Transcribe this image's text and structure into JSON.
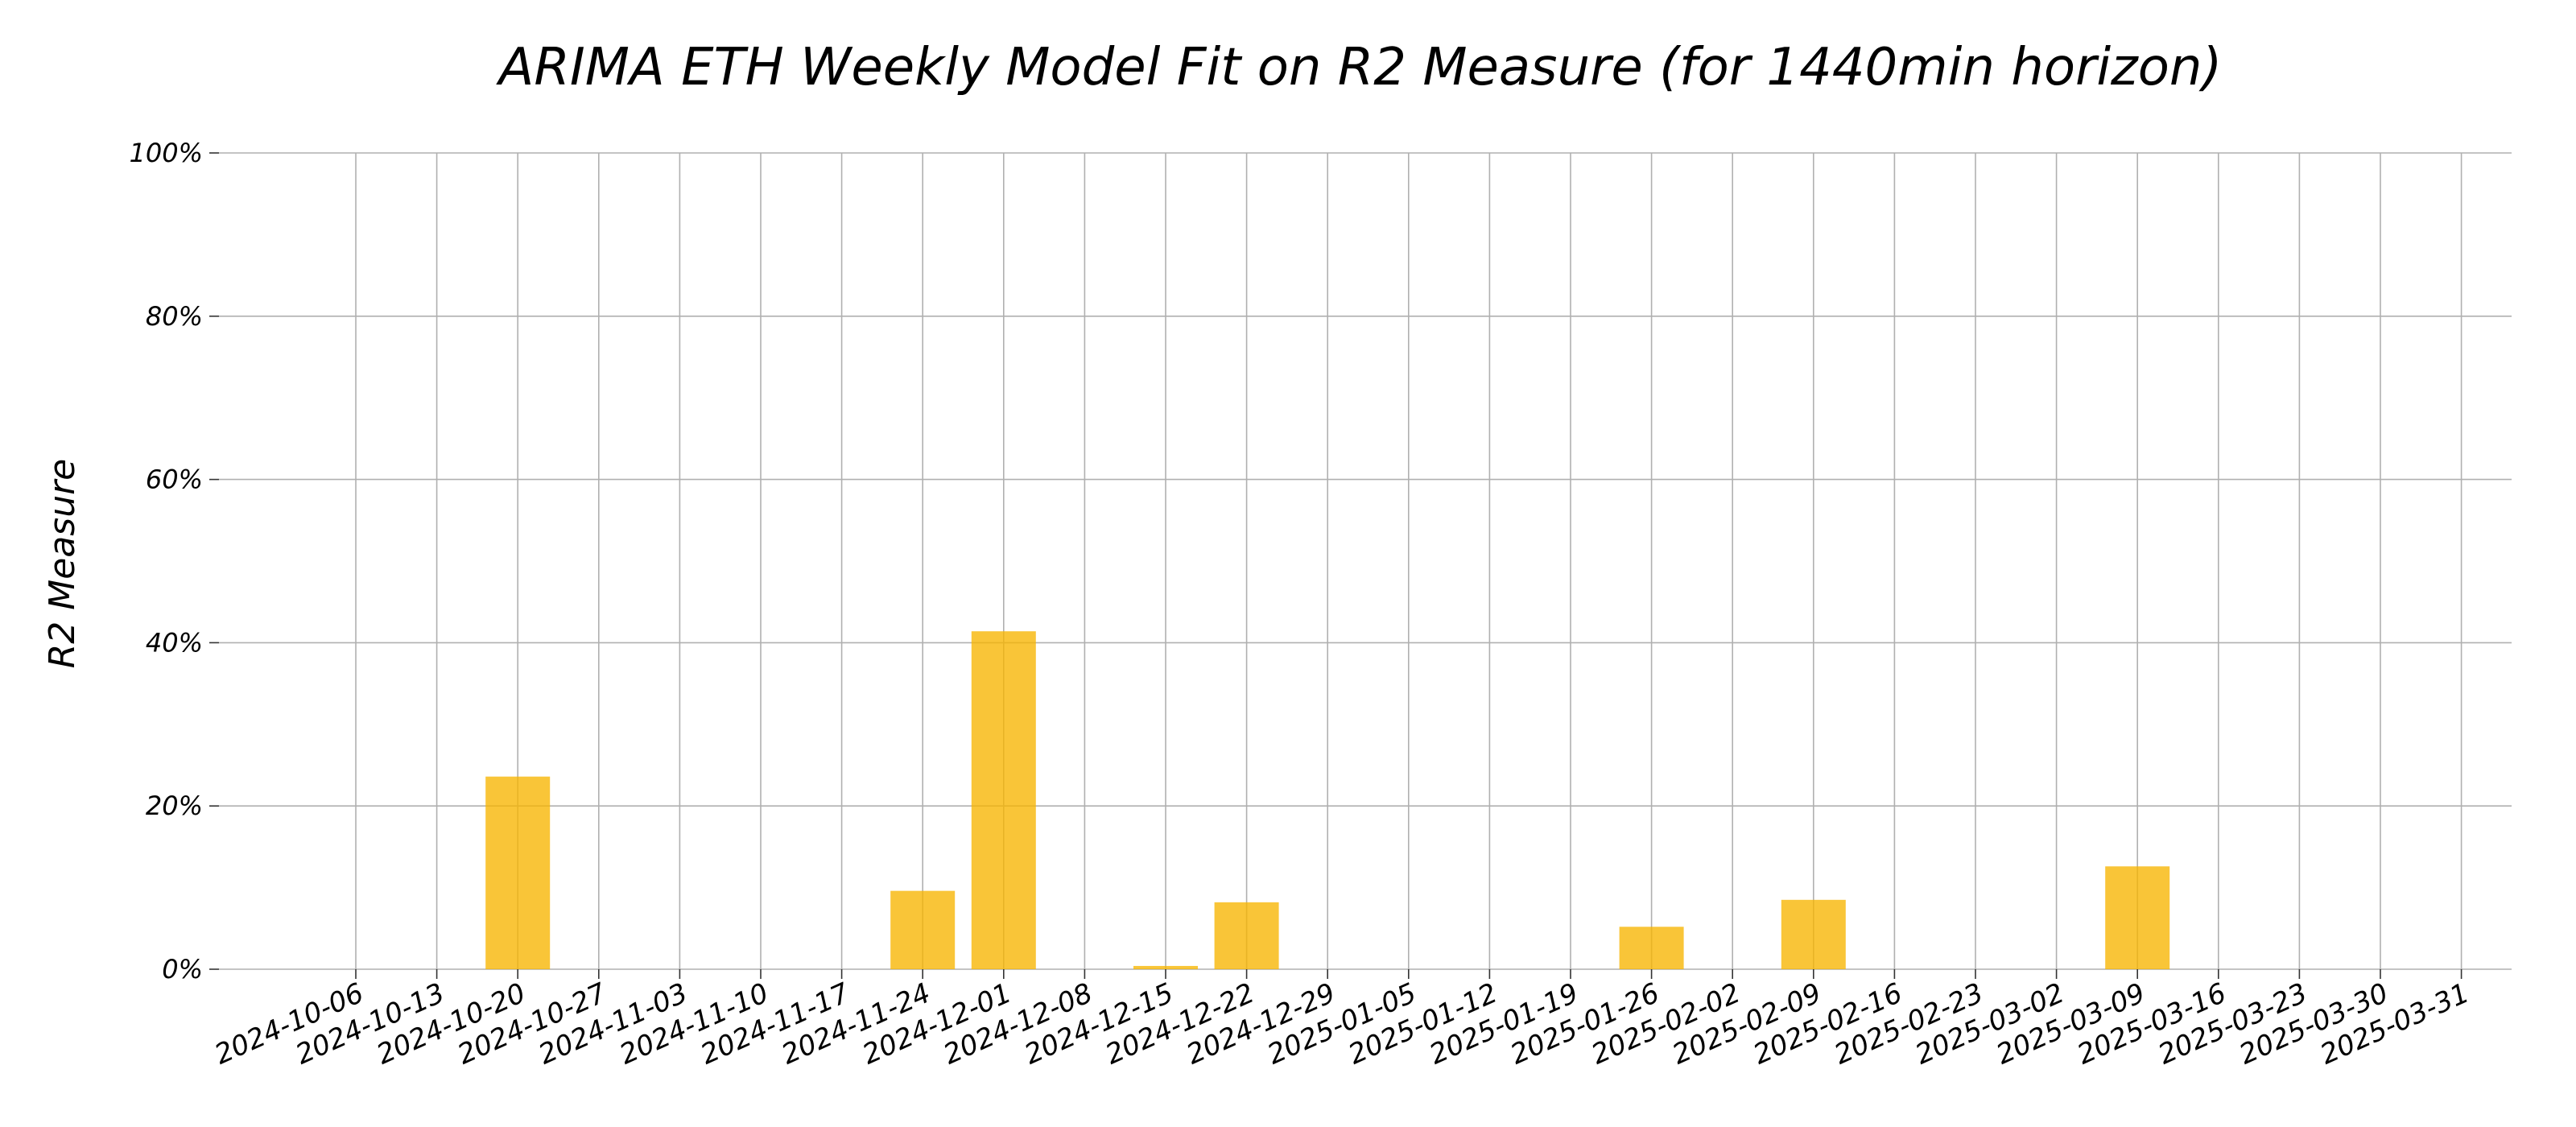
{
  "chart_data": {
    "type": "bar",
    "title": "ARIMA ETH Weekly Model Fit on R2 Measure (for 1440min horizon)",
    "xlabel": "",
    "ylabel": "R2 Measure",
    "ylim": [
      0,
      100
    ],
    "yticks": [
      0,
      20,
      40,
      60,
      80,
      100
    ],
    "ytick_labels": [
      "0%",
      "20%",
      "40%",
      "60%",
      "80%",
      "100%"
    ],
    "grid": true,
    "bar_color": "#f7b500",
    "categories": [
      "2024-10-06",
      "2024-10-13",
      "2024-10-20",
      "2024-10-27",
      "2024-11-03",
      "2024-11-10",
      "2024-11-17",
      "2024-11-24",
      "2024-12-01",
      "2024-12-08",
      "2024-12-15",
      "2024-12-22",
      "2024-12-29",
      "2025-01-05",
      "2025-01-12",
      "2025-01-19",
      "2025-01-26",
      "2025-02-02",
      "2025-02-09",
      "2025-02-16",
      "2025-02-23",
      "2025-03-02",
      "2025-03-09",
      "2025-03-16",
      "2025-03-23",
      "2025-03-30",
      "2025-03-31"
    ],
    "values": [
      0,
      0,
      23.6,
      0,
      0,
      0,
      0,
      9.6,
      41.4,
      0,
      0.4,
      8.2,
      0,
      0,
      0,
      0,
      5.2,
      0,
      8.5,
      0,
      0,
      0,
      12.6,
      0,
      0,
      0,
      0
    ]
  }
}
